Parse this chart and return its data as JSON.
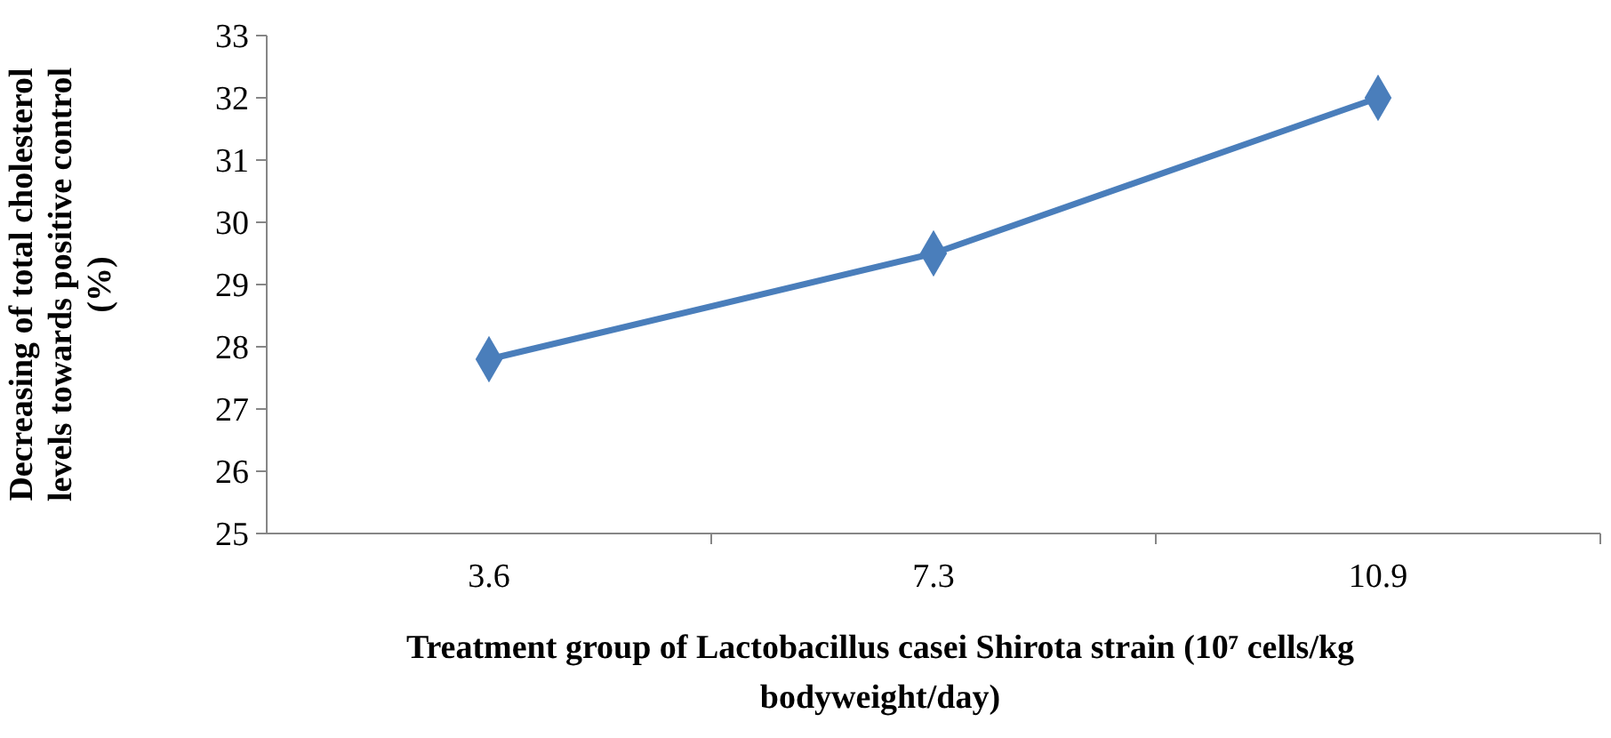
{
  "chart_data": {
    "type": "line",
    "xlabel": "Treatment group of Lactobacillus casei Shirota strain (10⁷ cells/kg bodyweight/day)",
    "ylabel": "Decreasing of total cholesterol levels towards positive control (%)",
    "categories": [
      "3.6",
      "7.3",
      "10.9"
    ],
    "series": [
      {
        "color": "#4a7ebb",
        "values": [
          27.8,
          29.5,
          32
        ]
      }
    ],
    "ylim": [
      25,
      33
    ],
    "yticks": [
      25,
      26,
      27,
      28,
      29,
      30,
      31,
      32,
      33
    ],
    "marker": "diamond",
    "line_style": "solid",
    "grid": false
  }
}
